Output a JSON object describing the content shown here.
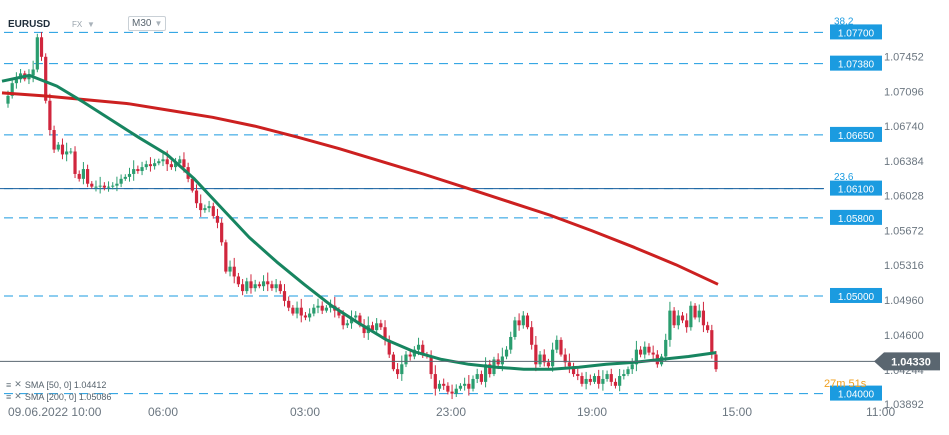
{
  "header": {
    "symbol": "EURUSD",
    "market": "FX",
    "timeframe": "M30"
  },
  "colors": {
    "up": "#2a9d6f",
    "down": "#d0263d",
    "sma50": "#178560",
    "sma200": "#cc2020",
    "levels": "#1b9be0",
    "price": "#5a6670"
  },
  "indicators": [
    {
      "label": "SMA [50, 0] 1.04412"
    },
    {
      "label": "SMA [200, 0] 1.05086"
    }
  ],
  "countdown": "27m 51s",
  "fib_labels": [
    {
      "text": "38.2",
      "price": 1.0781
    },
    {
      "text": "23.6",
      "price": 1.0622
    }
  ],
  "chart_data": {
    "type": "candlestick",
    "symbol": "EURUSD",
    "timeframe": "M30",
    "ylim": [
      1.0375,
      1.0795
    ],
    "y_ticks": [
      "1.07452",
      "1.07096",
      "1.06740",
      "1.06384",
      "1.06028",
      "1.05672",
      "1.05316",
      "1.04960",
      "1.04600",
      "1.04244",
      "1.03892"
    ],
    "x_ticks": [
      "09.06.2022 10:00",
      "06:00",
      "03:00",
      "23:00",
      "19:00",
      "15:00",
      "11:00"
    ],
    "current_price": "1.04330",
    "levels": [
      "1.07700",
      "1.07380",
      "1.06650",
      "1.06100",
      "1.05800",
      "1.05000",
      "1.04000"
    ],
    "candle_closes": [
      1.0705,
      1.0718,
      1.0722,
      1.0728,
      1.0722,
      1.0726,
      1.0732,
      1.0765,
      1.0745,
      1.07,
      1.067,
      1.065,
      1.0655,
      1.0645,
      1.0648,
      1.0648,
      1.0625,
      1.062,
      1.063,
      1.0615,
      1.0612,
      1.0612,
      1.0613,
      1.0611,
      1.0612,
      1.0613,
      1.0615,
      1.062,
      1.0622,
      1.0625,
      1.063,
      1.0628,
      1.0632,
      1.0635,
      1.0633,
      1.0636,
      1.0638,
      1.064,
      1.0635,
      1.0632,
      1.0636,
      1.064,
      1.0632,
      1.062,
      1.0608,
      1.0595,
      1.0588,
      1.059,
      1.0592,
      1.0582,
      1.0575,
      1.0555,
      1.0525,
      1.053,
      1.052,
      1.0512,
      1.0505,
      1.0515,
      1.0508,
      1.0512,
      1.051,
      1.0515,
      1.0512,
      1.0508,
      1.0512,
      1.0505,
      1.0495,
      1.0488,
      1.0482,
      1.0488,
      1.048,
      1.0478,
      1.0482,
      1.0488,
      1.049,
      1.0485,
      1.0488,
      1.049,
      1.0485,
      1.048,
      1.047,
      1.0472,
      1.0478,
      1.048,
      1.047,
      1.0462,
      1.047,
      1.0465,
      1.0472,
      1.0468,
      1.0455,
      1.044,
      1.0425,
      1.042,
      1.043,
      1.044,
      1.0438,
      1.0445,
      1.045,
      1.044,
      1.0438,
      1.042,
      1.0405,
      1.041,
      1.0408,
      1.0402,
      1.04,
      1.0405,
      1.0408,
      1.041,
      1.0405,
      1.0415,
      1.042,
      1.0412,
      1.043,
      1.042,
      1.0435,
      1.043,
      1.0438,
      1.0445,
      1.0458,
      1.0475,
      1.047,
      1.048,
      1.0468,
      1.045,
      1.043,
      1.044,
      1.0432,
      1.0428,
      1.0445,
      1.0455,
      1.044,
      1.0432,
      1.0428,
      1.042,
      1.0418,
      1.041,
      1.0415,
      1.0412,
      1.0418,
      1.041,
      1.0415,
      1.042,
      1.0412,
      1.0408,
      1.0418,
      1.042,
      1.0425,
      1.043,
      1.0445,
      1.044,
      1.0448,
      1.0442,
      1.044,
      1.043,
      1.0438,
      1.0455,
      1.0485,
      1.047,
      1.048,
      1.0475,
      1.0468,
      1.049,
      1.0478,
      1.0485,
      1.047,
      1.0465,
      1.044,
      1.0425
    ],
    "sma50": [
      1.072,
      1.0726,
      1.0715,
      1.0698,
      1.068,
      1.0662,
      1.0645,
      1.062,
      1.059,
      1.056,
      1.0535,
      1.0512,
      1.049,
      1.0472,
      1.0455,
      1.0443,
      1.0435,
      1.043,
      1.0427,
      1.0425,
      1.0425,
      1.0427,
      1.043,
      1.0432,
      1.0435,
      1.0438,
      1.0442
    ],
    "sma200": [
      1.0708,
      1.0705,
      1.0701,
      1.0697,
      1.069,
      1.0683,
      1.0674,
      1.0663,
      1.0651,
      1.0638,
      1.0625,
      1.0611,
      1.0597,
      1.0583,
      1.0567,
      1.055,
      1.0532,
      1.0512
    ]
  }
}
